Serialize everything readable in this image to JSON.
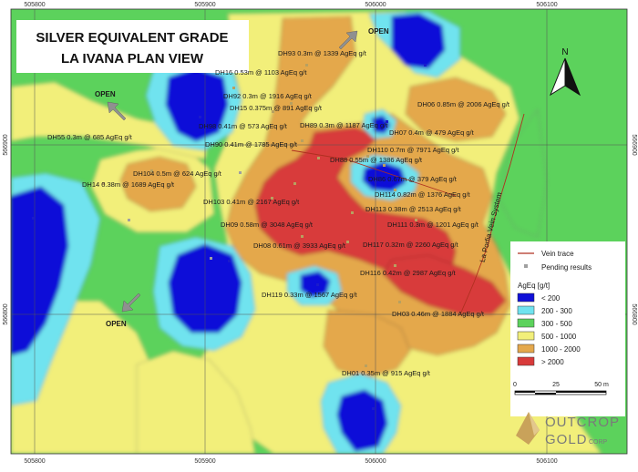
{
  "title": {
    "line1": "SILVER EQUIVALENT GRADE",
    "line2": "LA IVANA PLAN VIEW"
  },
  "grid": {
    "top_x": [
      "505800",
      "505900",
      "506000",
      "506100"
    ],
    "bottom_x": [
      "505800",
      "505900",
      "506000",
      "506100"
    ],
    "left_y": [
      "566900",
      "566800"
    ],
    "right_y": [
      "566900",
      "566800"
    ]
  },
  "open_labels": [
    "OPEN",
    "OPEN",
    "OPEN"
  ],
  "drillholes": [
    "DH93 0.3m @ 1339 AgEq g/t",
    "DH16 0.53m @ 1103 AgEq g/t",
    "DH92 0.3m @ 1916 AgEq g/t",
    "DH15 0.375m @ 891 AgEq g/t",
    "DH06 0.85m @ 2006 AgEq g/t",
    "DH98 0.41m @ 573 AgEq g/t",
    "DH89 0.3m @ 1187 AgEq g/t",
    "DH07 0.4m @ 479 AgEq g/t",
    "DH55 0.3m @ 685 AgEq g/t",
    "DH90 0.41m @ 1785 AgEq g/t",
    "DH110 0.7m @ 7971 AgEq g/t",
    "DH88 0.55m @ 1386 AgEq g/t",
    "DH104 0.5m @ 624 AgEq g/t",
    "DH86 0.67m @ 379 AgEq g/t",
    "DH14 0.38m @ 1689 AgEq g/t",
    "DH114 0.82m @ 1376 AgEq g/t",
    "DH103 0.41m @ 2167 AgEq g/t",
    "DH113 0.38m @ 2513 AgEq g/t",
    "DH09 0.58m @ 3048 AgEq g/t",
    "DH111 0.3m @ 1201 AgEq g/t",
    "DH08 0.61m @ 3933 AgEq g/t",
    "DH117 0.32m @ 2260 AgEq g/t",
    "DH116 0.42m @ 2987 AgEq g/t",
    "DH119 0.33m @ 1567 AgEq g/t",
    "DH03 0.46m @ 1884 AgEq g/t",
    "DH01 0.35m @ 915 AgEq g/t"
  ],
  "vein_label": "La Porfia Vein System",
  "north_label": "N",
  "legend": {
    "vein_trace": "Vein trace",
    "pending": "Pending results",
    "title": "AgEq [g/t]",
    "classes": [
      {
        "label": "< 200",
        "color": "#1010d8"
      },
      {
        "label": "200 - 300",
        "color": "#6fe3ef"
      },
      {
        "label": "300 - 500",
        "color": "#5cd25c"
      },
      {
        "label": "500 - 1000",
        "color": "#f2ef7a"
      },
      {
        "label": "1000 - 2000",
        "color": "#e4a84c"
      },
      {
        "label": "> 2000",
        "color": "#d83a3a"
      }
    ]
  },
  "scalebar": {
    "ticks": [
      "0",
      "25",
      "50 m"
    ]
  },
  "logo": {
    "line1": "OUTCROP",
    "line2": "GOLD",
    "suffix": "CORP"
  },
  "colors": {
    "vein_trace": "#b03020",
    "pending": "#a0a0a0"
  }
}
